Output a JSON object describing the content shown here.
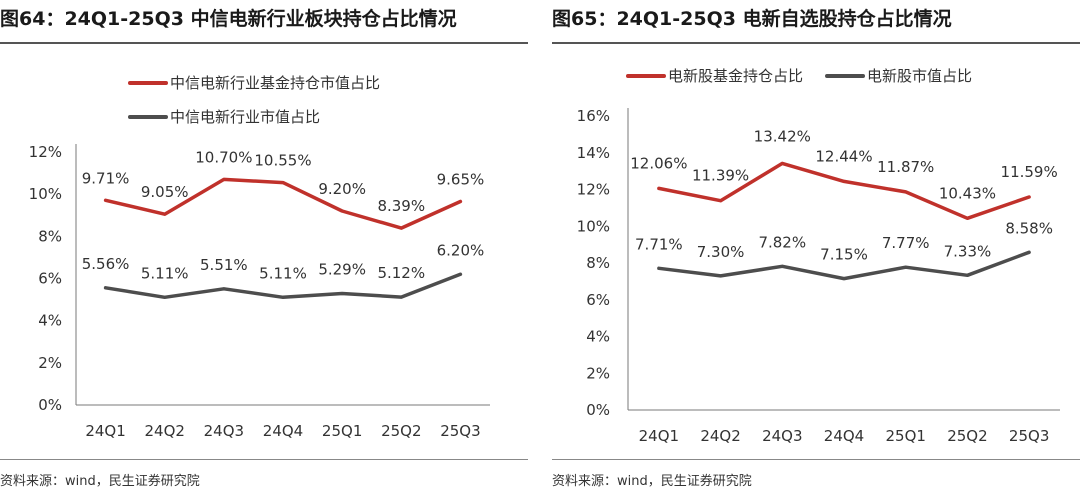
{
  "panels": [
    {
      "title": "图64：24Q1-25Q3 中信电新行业板块持仓占比情况",
      "source": "资料来源：wind，民生证券研究院"
    },
    {
      "title": "图65：24Q1-25Q3 电新自选股持仓占比情况",
      "source": "资料来源：wind，民生证券研究院"
    }
  ],
  "chart_data": [
    {
      "type": "line",
      "title": "图64：24Q1-25Q3 中信电新行业板块持仓占比情况",
      "categories": [
        "24Q1",
        "24Q2",
        "24Q3",
        "24Q4",
        "25Q1",
        "25Q2",
        "25Q3"
      ],
      "ylim": [
        0,
        12
      ],
      "yticks": [
        0,
        2,
        4,
        6,
        8,
        10,
        12
      ],
      "ytick_labels": [
        "0%",
        "2%",
        "4%",
        "6%",
        "8%",
        "10%",
        "12%"
      ],
      "legend_position": "top-center, stacked",
      "series": [
        {
          "name": "中信电新行业基金持仓市值占比",
          "color": "#c0312b",
          "values": [
            9.71,
            9.05,
            10.7,
            10.55,
            9.2,
            8.39,
            9.65
          ],
          "labels": [
            "9.71%",
            "9.05%",
            "10.70%",
            "10.55%",
            "9.20%",
            "8.39%",
            "9.65%"
          ]
        },
        {
          "name": "中信电新行业市值占比",
          "color": "#4d4d4d",
          "values": [
            5.56,
            5.11,
            5.51,
            5.11,
            5.29,
            5.12,
            6.2
          ],
          "labels": [
            "5.56%",
            "5.11%",
            "5.51%",
            "5.11%",
            "5.29%",
            "5.12%",
            "6.20%"
          ]
        }
      ]
    },
    {
      "type": "line",
      "title": "图65：24Q1-25Q3 电新自选股持仓占比情况",
      "categories": [
        "24Q1",
        "24Q2",
        "24Q3",
        "24Q4",
        "25Q1",
        "25Q2",
        "25Q3"
      ],
      "ylim": [
        0,
        16
      ],
      "yticks": [
        0,
        2,
        4,
        6,
        8,
        10,
        12,
        14,
        16
      ],
      "ytick_labels": [
        "0%",
        "2%",
        "4%",
        "6%",
        "8%",
        "10%",
        "12%",
        "14%",
        "16%"
      ],
      "legend_position": "top-center, one row",
      "series": [
        {
          "name": "电新股基金持仓占比",
          "color": "#c0312b",
          "values": [
            12.06,
            11.39,
            13.42,
            12.44,
            11.87,
            10.43,
            11.59
          ],
          "labels": [
            "12.06%",
            "11.39%",
            "13.42%",
            "12.44%",
            "11.87%",
            "10.43%",
            "11.59%"
          ]
        },
        {
          "name": "电新股市值占比",
          "color": "#4d4d4d",
          "values": [
            7.71,
            7.3,
            7.82,
            7.15,
            7.77,
            7.33,
            8.58
          ],
          "labels": [
            "7.71%",
            "7.30%",
            "7.82%",
            "7.15%",
            "7.77%",
            "7.33%",
            "8.58%"
          ]
        }
      ]
    }
  ]
}
